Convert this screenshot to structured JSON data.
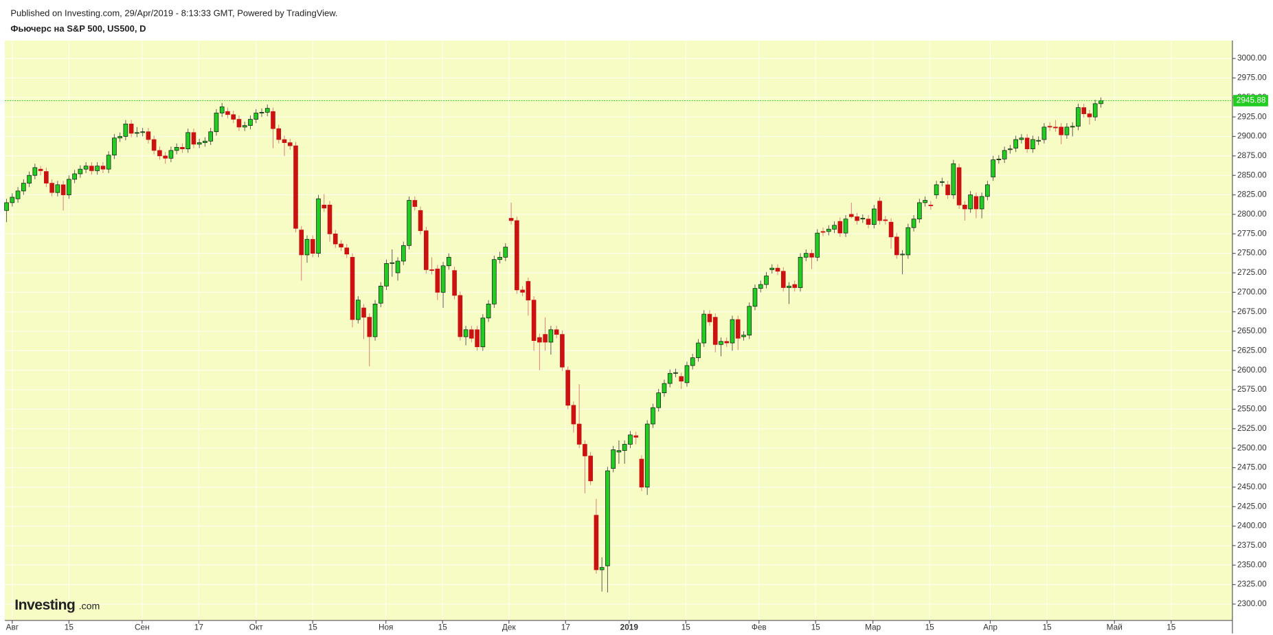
{
  "chart_data": {
    "type": "candlestick",
    "source": "Published on Investing.com, 29/Apr/2019 - 8:13:33 GMT, Powered by TradingView.",
    "title": "Фьючерс на S&P 500, US500, D",
    "watermark": "Investing",
    "watermark_suffix": ".com",
    "up_color": "#22cc22",
    "down_color": "#cc1111",
    "background": "#f6fcc3",
    "grid": true,
    "last_price": 2945.88,
    "last_price_color": "#22cc22",
    "ylim": [
      2279,
      3023
    ],
    "yticks": [
      {
        "value": 2300,
        "label": "2300.00"
      },
      {
        "value": 2325,
        "label": "2325.00"
      },
      {
        "value": 2350,
        "label": "2350.00"
      },
      {
        "value": 2375,
        "label": "2375.00"
      },
      {
        "value": 2400,
        "label": "2400.00"
      },
      {
        "value": 2425,
        "label": "2425.00"
      },
      {
        "value": 2450,
        "label": "2450.00"
      },
      {
        "value": 2475,
        "label": "2475.00"
      },
      {
        "value": 2500,
        "label": "2500.00"
      },
      {
        "value": 2525,
        "label": "2525.00"
      },
      {
        "value": 2550,
        "label": "2550.00"
      },
      {
        "value": 2575,
        "label": "2575.00"
      },
      {
        "value": 2600,
        "label": "2600.00"
      },
      {
        "value": 2625,
        "label": "2625.00"
      },
      {
        "value": 2650,
        "label": "2650.00"
      },
      {
        "value": 2675,
        "label": "2675.00"
      },
      {
        "value": 2700,
        "label": "2700.00"
      },
      {
        "value": 2725,
        "label": "2725.00"
      },
      {
        "value": 2750,
        "label": "2750.00"
      },
      {
        "value": 2775,
        "label": "2775.00"
      },
      {
        "value": 2800,
        "label": "2800.00"
      },
      {
        "value": 2825,
        "label": "2825.00"
      },
      {
        "value": 2850,
        "label": "2850.00"
      },
      {
        "value": 2875,
        "label": "2875.00"
      },
      {
        "value": 2900,
        "label": "2900.00"
      },
      {
        "value": 2925,
        "label": "2925.00"
      },
      {
        "value": 2950,
        "label": "2950.00"
      },
      {
        "value": 2975,
        "label": "2975.00"
      },
      {
        "value": 3000,
        "label": "3000.00"
      }
    ],
    "xlim": [
      -0.3,
      216.2
    ],
    "xticks": [
      {
        "value": 1,
        "label": "Авг"
      },
      {
        "value": 11,
        "label": "15"
      },
      {
        "value": 23.9,
        "label": "Сен"
      },
      {
        "value": 33.9,
        "label": "17"
      },
      {
        "value": 44,
        "label": "Окт"
      },
      {
        "value": 54,
        "label": "15"
      },
      {
        "value": 66.9,
        "label": "Ноя"
      },
      {
        "value": 76.9,
        "label": "15"
      },
      {
        "value": 88.6,
        "label": "Дек"
      },
      {
        "value": 98.6,
        "label": "17"
      },
      {
        "value": 109.8,
        "label": "2019"
      },
      {
        "value": 119.8,
        "label": "15"
      },
      {
        "value": 132.7,
        "label": "Фев"
      },
      {
        "value": 142.7,
        "label": "15"
      },
      {
        "value": 152.8,
        "label": "Мар"
      },
      {
        "value": 162.8,
        "label": "15"
      },
      {
        "value": 173.5,
        "label": "Апр"
      },
      {
        "value": 183.5,
        "label": "15"
      },
      {
        "value": 195.4,
        "label": "Май"
      },
      {
        "value": 205.4,
        "label": "15"
      }
    ],
    "ohlc": [
      [
        2805,
        2820,
        2790,
        2815
      ],
      [
        2815,
        2827,
        2810,
        2822
      ],
      [
        2820,
        2835,
        2815,
        2830
      ],
      [
        2830,
        2845,
        2825,
        2840
      ],
      [
        2840,
        2855,
        2835,
        2850
      ],
      [
        2850,
        2865,
        2845,
        2860
      ],
      [
        2858,
        2862,
        2850,
        2856
      ],
      [
        2855,
        2860,
        2835,
        2840
      ],
      [
        2840,
        2845,
        2823,
        2828
      ],
      [
        2828,
        2843,
        2823,
        2838
      ],
      [
        2838,
        2843,
        2805,
        2825
      ],
      [
        2825,
        2850,
        2820,
        2845
      ],
      [
        2845,
        2857,
        2840,
        2852
      ],
      [
        2852,
        2863,
        2847,
        2858
      ],
      [
        2858,
        2867,
        2853,
        2862
      ],
      [
        2862,
        2867,
        2851,
        2856
      ],
      [
        2856,
        2867,
        2851,
        2862
      ],
      [
        2862,
        2867,
        2853,
        2858
      ],
      [
        2858,
        2881,
        2853,
        2876
      ],
      [
        2876,
        2903,
        2871,
        2898
      ],
      [
        2898,
        2905,
        2893,
        2900
      ],
      [
        2900,
        2921,
        2895,
        2916
      ],
      [
        2916,
        2921,
        2899,
        2904
      ],
      [
        2904,
        2912,
        2899,
        2905
      ],
      [
        2905,
        2911,
        2900,
        2906
      ],
      [
        2906,
        2911,
        2891,
        2896
      ],
      [
        2896,
        2901,
        2877,
        2882
      ],
      [
        2882,
        2887,
        2870,
        2875
      ],
      [
        2875,
        2880,
        2865,
        2872
      ],
      [
        2872,
        2887,
        2867,
        2882
      ],
      [
        2882,
        2891,
        2877,
        2886
      ],
      [
        2886,
        2891,
        2879,
        2884
      ],
      [
        2884,
        2910,
        2879,
        2905
      ],
      [
        2905,
        2910,
        2885,
        2890
      ],
      [
        2890,
        2897,
        2885,
        2892
      ],
      [
        2892,
        2899,
        2887,
        2894
      ],
      [
        2894,
        2911,
        2889,
        2906
      ],
      [
        2906,
        2935,
        2901,
        2930
      ],
      [
        2930,
        2943,
        2925,
        2938
      ],
      [
        2932,
        2937,
        2923,
        2928
      ],
      [
        2928,
        2933,
        2917,
        2922
      ],
      [
        2922,
        2927,
        2907,
        2912
      ],
      [
        2912,
        2919,
        2907,
        2914
      ],
      [
        2914,
        2927,
        2909,
        2922
      ],
      [
        2922,
        2935,
        2917,
        2930
      ],
      [
        2930,
        2936,
        2925,
        2931
      ],
      [
        2931,
        2941,
        2926,
        2936
      ],
      [
        2932,
        2937,
        2885,
        2910
      ],
      [
        2910,
        2915,
        2891,
        2896
      ],
      [
        2896,
        2901,
        2875,
        2892
      ],
      [
        2892,
        2897,
        2883,
        2888
      ],
      [
        2888,
        2893,
        2777,
        2782
      ],
      [
        2780,
        2785,
        2715,
        2748
      ],
      [
        2748,
        2773,
        2738,
        2768
      ],
      [
        2768,
        2773,
        2745,
        2750
      ],
      [
        2750,
        2825,
        2745,
        2820
      ],
      [
        2812,
        2826,
        2803,
        2808
      ],
      [
        2812,
        2817,
        2765,
        2775
      ],
      [
        2775,
        2780,
        2757,
        2762
      ],
      [
        2762,
        2767,
        2753,
        2758
      ],
      [
        2757,
        2762,
        2744,
        2749
      ],
      [
        2745,
        2750,
        2655,
        2665
      ],
      [
        2665,
        2695,
        2660,
        2690
      ],
      [
        2680,
        2685,
        2640,
        2668
      ],
      [
        2668,
        2673,
        2605,
        2643
      ],
      [
        2643,
        2690,
        2638,
        2685
      ],
      [
        2686,
        2713,
        2681,
        2708
      ],
      [
        2708,
        2742,
        2703,
        2737
      ],
      [
        2737,
        2755,
        2720,
        2738
      ],
      [
        2725,
        2745,
        2715,
        2740
      ],
      [
        2740,
        2765,
        2735,
        2760
      ],
      [
        2760,
        2823,
        2755,
        2818
      ],
      [
        2818,
        2823,
        2805,
        2810
      ],
      [
        2805,
        2810,
        2774,
        2779
      ],
      [
        2779,
        2784,
        2724,
        2729
      ],
      [
        2729,
        2745,
        2723,
        2728
      ],
      [
        2730,
        2735,
        2690,
        2700
      ],
      [
        2700,
        2739,
        2680,
        2734
      ],
      [
        2734,
        2750,
        2729,
        2745
      ],
      [
        2728,
        2733,
        2691,
        2696
      ],
      [
        2696,
        2701,
        2638,
        2643
      ],
      [
        2643,
        2657,
        2632,
        2652
      ],
      [
        2652,
        2657,
        2636,
        2641
      ],
      [
        2652,
        2657,
        2625,
        2630
      ],
      [
        2630,
        2672,
        2625,
        2667
      ],
      [
        2667,
        2690,
        2662,
        2685
      ],
      [
        2685,
        2747,
        2680,
        2742
      ],
      [
        2742,
        2752,
        2737,
        2745
      ],
      [
        2745,
        2763,
        2740,
        2758
      ],
      [
        2795,
        2815,
        2787,
        2792
      ],
      [
        2792,
        2797,
        2698,
        2703
      ],
      [
        2703,
        2708,
        2695,
        2700
      ],
      [
        2714,
        2719,
        2670,
        2690
      ],
      [
        2690,
        2695,
        2625,
        2638
      ],
      [
        2642,
        2647,
        2600,
        2636
      ],
      [
        2646,
        2668,
        2625,
        2636
      ],
      [
        2636,
        2657,
        2620,
        2652
      ],
      [
        2652,
        2657,
        2641,
        2646
      ],
      [
        2646,
        2651,
        2599,
        2604
      ],
      [
        2600,
        2605,
        2550,
        2555
      ],
      [
        2555,
        2560,
        2520,
        2531
      ],
      [
        2531,
        2582,
        2500,
        2505
      ],
      [
        2505,
        2510,
        2442,
        2490
      ],
      [
        2490,
        2495,
        2453,
        2458
      ],
      [
        2414,
        2435,
        2339,
        2344
      ],
      [
        2344,
        2360,
        2316,
        2347
      ],
      [
        2349,
        2476,
        2315,
        2471
      ],
      [
        2474,
        2503,
        2469,
        2498
      ],
      [
        2495,
        2510,
        2480,
        2497
      ],
      [
        2497,
        2510,
        2480,
        2505
      ],
      [
        2505,
        2522,
        2500,
        2517
      ],
      [
        2516,
        2521,
        2505,
        2514
      ],
      [
        2486,
        2491,
        2445,
        2450
      ],
      [
        2450,
        2536,
        2440,
        2531
      ],
      [
        2531,
        2557,
        2526,
        2552
      ],
      [
        2552,
        2576,
        2547,
        2571
      ],
      [
        2571,
        2588,
        2566,
        2583
      ],
      [
        2583,
        2601,
        2578,
        2596
      ],
      [
        2596,
        2602,
        2591,
        2597
      ],
      [
        2592,
        2597,
        2576,
        2586
      ],
      [
        2584,
        2611,
        2579,
        2606
      ],
      [
        2606,
        2621,
        2601,
        2616
      ],
      [
        2616,
        2640,
        2611,
        2635
      ],
      [
        2635,
        2677,
        2630,
        2672
      ],
      [
        2672,
        2677,
        2657,
        2662
      ],
      [
        2668,
        2673,
        2623,
        2633
      ],
      [
        2633,
        2642,
        2618,
        2637
      ],
      [
        2637,
        2642,
        2630,
        2635
      ],
      [
        2635,
        2670,
        2625,
        2665
      ],
      [
        2665,
        2670,
        2626,
        2641
      ],
      [
        2643,
        2650,
        2638,
        2645
      ],
      [
        2645,
        2687,
        2640,
        2682
      ],
      [
        2682,
        2710,
        2677,
        2705
      ],
      [
        2705,
        2715,
        2700,
        2710
      ],
      [
        2710,
        2726,
        2705,
        2721
      ],
      [
        2729,
        2736,
        2724,
        2731
      ],
      [
        2731,
        2736,
        2722,
        2727
      ],
      [
        2727,
        2732,
        2701,
        2706
      ],
      [
        2706,
        2713,
        2685,
        2708
      ],
      [
        2710,
        2715,
        2701,
        2706
      ],
      [
        2706,
        2750,
        2701,
        2745
      ],
      [
        2745,
        2755,
        2740,
        2750
      ],
      [
        2750,
        2755,
        2730,
        2745
      ],
      [
        2745,
        2781,
        2740,
        2776
      ],
      [
        2778,
        2783,
        2772,
        2777
      ],
      [
        2778,
        2786,
        2773,
        2781
      ],
      [
        2781,
        2791,
        2776,
        2786
      ],
      [
        2791,
        2796,
        2771,
        2776
      ],
      [
        2776,
        2799,
        2771,
        2794
      ],
      [
        2800,
        2815,
        2795,
        2797
      ],
      [
        2797,
        2802,
        2787,
        2792
      ],
      [
        2794,
        2800,
        2789,
        2795
      ],
      [
        2794,
        2799,
        2782,
        2787
      ],
      [
        2787,
        2812,
        2782,
        2807
      ],
      [
        2817,
        2822,
        2787,
        2792
      ],
      [
        2793,
        2798,
        2787,
        2792
      ],
      [
        2790,
        2795,
        2756,
        2771
      ],
      [
        2771,
        2776,
        2743,
        2748
      ],
      [
        2748,
        2754,
        2723,
        2749
      ],
      [
        2748,
        2788,
        2743,
        2783
      ],
      [
        2783,
        2799,
        2778,
        2794
      ],
      [
        2794,
        2820,
        2789,
        2815
      ],
      [
        2815,
        2823,
        2810,
        2818
      ],
      [
        2812,
        2817,
        2806,
        2811
      ],
      [
        2825,
        2843,
        2820,
        2838
      ],
      [
        2841,
        2847,
        2836,
        2842
      ],
      [
        2838,
        2843,
        2820,
        2825
      ],
      [
        2825,
        2870,
        2820,
        2865
      ],
      [
        2860,
        2865,
        2807,
        2812
      ],
      [
        2812,
        2817,
        2792,
        2807
      ],
      [
        2807,
        2830,
        2802,
        2825
      ],
      [
        2823,
        2828,
        2795,
        2807
      ],
      [
        2807,
        2828,
        2795,
        2823
      ],
      [
        2823,
        2843,
        2818,
        2838
      ],
      [
        2848,
        2875,
        2843,
        2870
      ],
      [
        2870,
        2876,
        2865,
        2871
      ],
      [
        2871,
        2887,
        2866,
        2882
      ],
      [
        2883,
        2889,
        2878,
        2884
      ],
      [
        2885,
        2901,
        2880,
        2896
      ],
      [
        2896,
        2903,
        2891,
        2898
      ],
      [
        2898,
        2903,
        2879,
        2884
      ],
      [
        2884,
        2901,
        2879,
        2896
      ],
      [
        2894,
        2900,
        2889,
        2895
      ],
      [
        2896,
        2917,
        2891,
        2912
      ],
      [
        2913,
        2918,
        2907,
        2912
      ],
      [
        2912,
        2921,
        2906,
        2911
      ],
      [
        2912,
        2917,
        2890,
        2902
      ],
      [
        2902,
        2917,
        2897,
        2912
      ],
      [
        2912,
        2918,
        2900,
        2913
      ],
      [
        2913,
        2942,
        2908,
        2937
      ],
      [
        2937,
        2942,
        2924,
        2929
      ],
      [
        2929,
        2934,
        2915,
        2925
      ],
      [
        2925,
        2947,
        2920,
        2942
      ],
      [
        2942,
        2950,
        2937,
        2945.88
      ]
    ]
  }
}
